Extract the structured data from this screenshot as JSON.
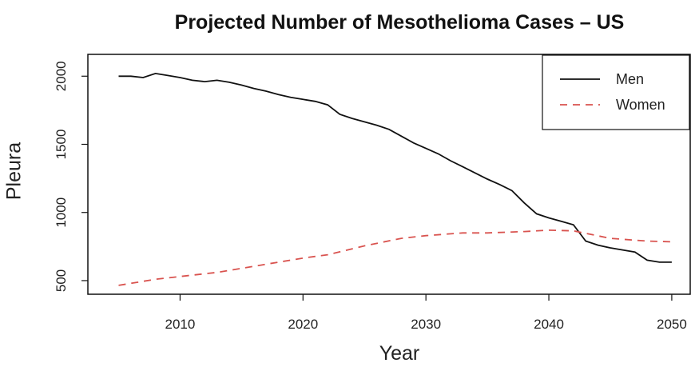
{
  "chart_data": {
    "type": "line",
    "title": "Projected Number of Mesothelioma Cases – US",
    "xlabel": "Year",
    "ylabel": "Pleura",
    "xlim": [
      2002.5,
      2051.5
    ],
    "ylim": [
      400,
      2160
    ],
    "x_ticks": [
      2010,
      2020,
      2030,
      2040,
      2050
    ],
    "y_ticks": [
      500,
      1000,
      1500,
      2000
    ],
    "legend_position": "top-right",
    "series": [
      {
        "name": "Men",
        "color": "#111111",
        "style": "solid",
        "x": [
          2005,
          2006,
          2007,
          2008,
          2009,
          2010,
          2011,
          2012,
          2013,
          2014,
          2015,
          2016,
          2017,
          2018,
          2019,
          2020,
          2021,
          2022,
          2023,
          2024,
          2025,
          2026,
          2027,
          2028,
          2029,
          2030,
          2031,
          2032,
          2033,
          2034,
          2035,
          2036,
          2037,
          2038,
          2039,
          2040,
          2041,
          2042,
          2043,
          2044,
          2045,
          2046,
          2047,
          2048,
          2049,
          2050
        ],
        "values": [
          2000,
          2000,
          1990,
          2020,
          2005,
          1990,
          1970,
          1960,
          1970,
          1955,
          1935,
          1910,
          1890,
          1865,
          1845,
          1830,
          1815,
          1790,
          1720,
          1690,
          1665,
          1640,
          1610,
          1560,
          1510,
          1470,
          1430,
          1380,
          1335,
          1290,
          1245,
          1205,
          1160,
          1070,
          990,
          960,
          935,
          910,
          790,
          760,
          740,
          725,
          710,
          650,
          635,
          635
        ]
      },
      {
        "name": "Women",
        "color": "#d9534f",
        "style": "dashed",
        "x": [
          2005,
          2008,
          2010,
          2013,
          2015,
          2018,
          2020,
          2022,
          2025,
          2028,
          2030,
          2033,
          2035,
          2038,
          2040,
          2042,
          2045,
          2048,
          2050
        ],
        "values": [
          465,
          510,
          530,
          560,
          590,
          635,
          665,
          690,
          755,
          810,
          830,
          850,
          850,
          860,
          870,
          865,
          810,
          790,
          785
        ]
      }
    ]
  }
}
